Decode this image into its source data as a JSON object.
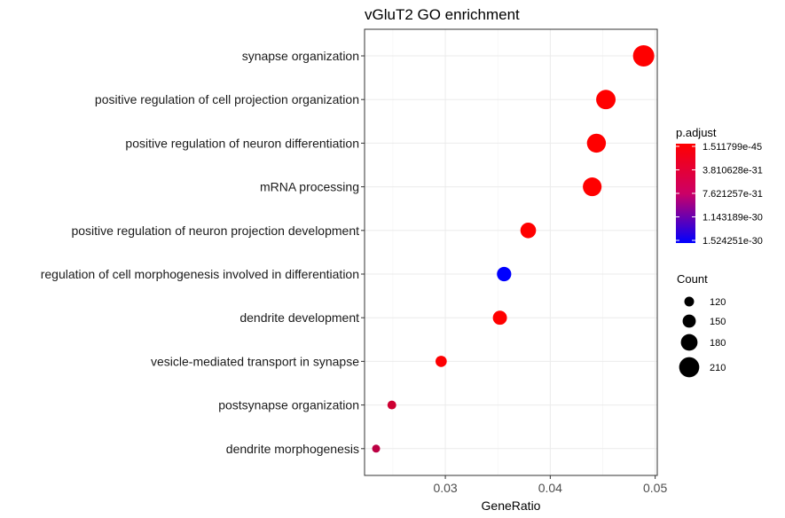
{
  "chart_data": {
    "type": "scatter",
    "title": "vGluT2 GO enrichment",
    "xlabel": "GeneRatio",
    "ylabel": "",
    "xlim": [
      0.0223,
      0.0502
    ],
    "x_ticks": [
      0.03,
      0.04,
      0.05
    ],
    "x_tick_labels": [
      "0.03",
      "0.04",
      "0.05"
    ],
    "grid": true,
    "categories": [
      "synapse organization",
      "positive regulation of cell projection organization",
      "positive regulation of neuron differentiation",
      "mRNA processing",
      "positive regulation of neuron projection development",
      "regulation of cell morphogenesis involved in differentiation",
      "dendrite development",
      "vesicle-mediated transport in synapse",
      "postsynapse organization",
      "dendrite morphogenesis"
    ],
    "points": [
      {
        "term": "synapse organization",
        "gene_ratio": 0.0489,
        "count": 220,
        "p_adjust": 1.5e-45
      },
      {
        "term": "positive regulation of cell projection organization",
        "gene_ratio": 0.0453,
        "count": 204,
        "p_adjust": 1e-40
      },
      {
        "term": "positive regulation of neuron differentiation",
        "gene_ratio": 0.0444,
        "count": 200,
        "p_adjust": 1e-38
      },
      {
        "term": "mRNA processing",
        "gene_ratio": 0.044,
        "count": 198,
        "p_adjust": 1e-37
      },
      {
        "term": "positive regulation of neuron projection development",
        "gene_ratio": 0.0379,
        "count": 171,
        "p_adjust": 1e-34
      },
      {
        "term": "regulation of cell morphogenesis involved in differentiation",
        "gene_ratio": 0.0356,
        "count": 160,
        "p_adjust": 1.524e-30
      },
      {
        "term": "dendrite development",
        "gene_ratio": 0.0352,
        "count": 158,
        "p_adjust": 1e-33
      },
      {
        "term": "vesicle-mediated transport in synapse",
        "gene_ratio": 0.0296,
        "count": 133,
        "p_adjust": 1e-32
      },
      {
        "term": "postsynapse organization",
        "gene_ratio": 0.0249,
        "count": 112,
        "p_adjust": 3e-31
      },
      {
        "term": "dendrite morphogenesis",
        "gene_ratio": 0.0234,
        "count": 105,
        "p_adjust": 4e-31
      }
    ],
    "color_legend": {
      "title": "p.adjust",
      "placement": "right",
      "labels": [
        "1.511799e-45",
        "3.810628e-31",
        "7.621257e-31",
        "1.143189e-30",
        "1.524251e-30"
      ],
      "values": [
        1.511799e-45,
        3.810628e-31,
        7.621257e-31,
        1.143189e-30,
        1.524251e-30
      ],
      "min": 1.511799e-45,
      "max": 1.524251e-30,
      "low_color": "#ff0000",
      "high_color": "#0000ff"
    },
    "size_legend": {
      "title": "Count",
      "placement": "right",
      "values": [
        120,
        150,
        180,
        210
      ],
      "labels": [
        "120",
        "150",
        "180",
        "210"
      ]
    }
  }
}
